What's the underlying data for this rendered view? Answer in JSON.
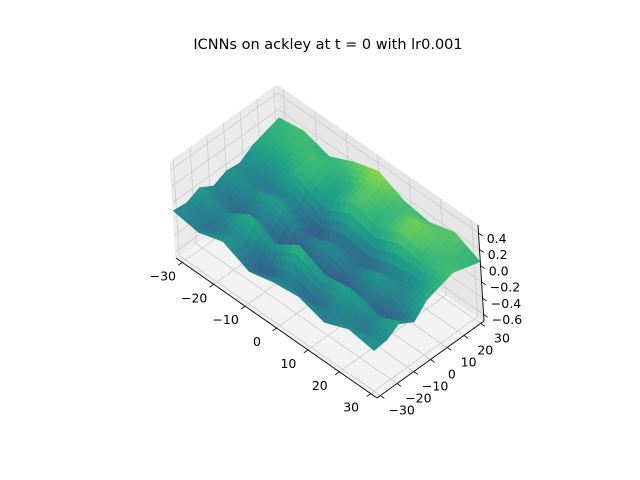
{
  "chart_data": {
    "type": "surface3d",
    "title": "ICNNs on ackley at t = 0 with lr0.001",
    "xlabel": "",
    "ylabel": "",
    "zlabel": "",
    "colormap": "viridis",
    "xlim": [
      -32,
      32
    ],
    "ylim": [
      -32,
      32
    ],
    "zlim": [
      -0.68,
      0.5
    ],
    "x_ticks": [
      -30,
      -20,
      -10,
      0,
      10,
      20,
      30
    ],
    "y_ticks": [
      -30,
      -20,
      -10,
      0,
      10,
      20,
      30
    ],
    "z_ticks": [
      -0.6,
      -0.4,
      -0.2,
      0.0,
      0.2,
      0.4
    ],
    "x_tick_labels": [
      "−30",
      "−20",
      "−10",
      "0",
      "10",
      "20",
      "30"
    ],
    "y_tick_labels": [
      "−30",
      "−20",
      "−10",
      "0",
      "10",
      "20",
      "30"
    ],
    "z_tick_labels": [
      "−0.6",
      "−0.4",
      "−0.2",
      "0.0",
      "0.2",
      "0.4"
    ],
    "grid": true,
    "surface": {
      "x": [
        -32,
        -24,
        -16,
        -8,
        0,
        8,
        16,
        24,
        32
      ],
      "y": [
        -32,
        -24,
        -16,
        -8,
        0,
        8,
        16,
        24,
        32
      ],
      "z": [
        [
          -0.1,
          -0.15,
          -0.05,
          -0.2,
          -0.12,
          -0.08,
          -0.18,
          -0.05,
          -0.1
        ],
        [
          -0.12,
          -0.25,
          -0.1,
          -0.35,
          -0.2,
          -0.3,
          -0.15,
          -0.22,
          -0.08
        ],
        [
          -0.05,
          -0.15,
          0.05,
          -0.1,
          0.1,
          -0.05,
          0.0,
          -0.12,
          0.02
        ],
        [
          -0.15,
          -0.3,
          -0.2,
          -0.45,
          -0.3,
          -0.4,
          -0.25,
          -0.35,
          -0.1
        ],
        [
          -0.08,
          -0.12,
          0.0,
          -0.25,
          -0.1,
          -0.2,
          -0.05,
          -0.15,
          0.05
        ],
        [
          -0.1,
          -0.2,
          -0.15,
          -0.35,
          -0.25,
          -0.3,
          -0.2,
          -0.1,
          0.1
        ],
        [
          0.0,
          -0.05,
          0.1,
          -0.05,
          0.15,
          0.05,
          0.2,
          0.1,
          0.15
        ],
        [
          0.05,
          0.1,
          0.15,
          0.0,
          0.2,
          0.1,
          0.25,
          0.15,
          0.1
        ],
        [
          0.1,
          0.15,
          0.05,
          0.2,
          0.3,
          0.15,
          0.1,
          0.2,
          0.05
        ]
      ]
    }
  }
}
